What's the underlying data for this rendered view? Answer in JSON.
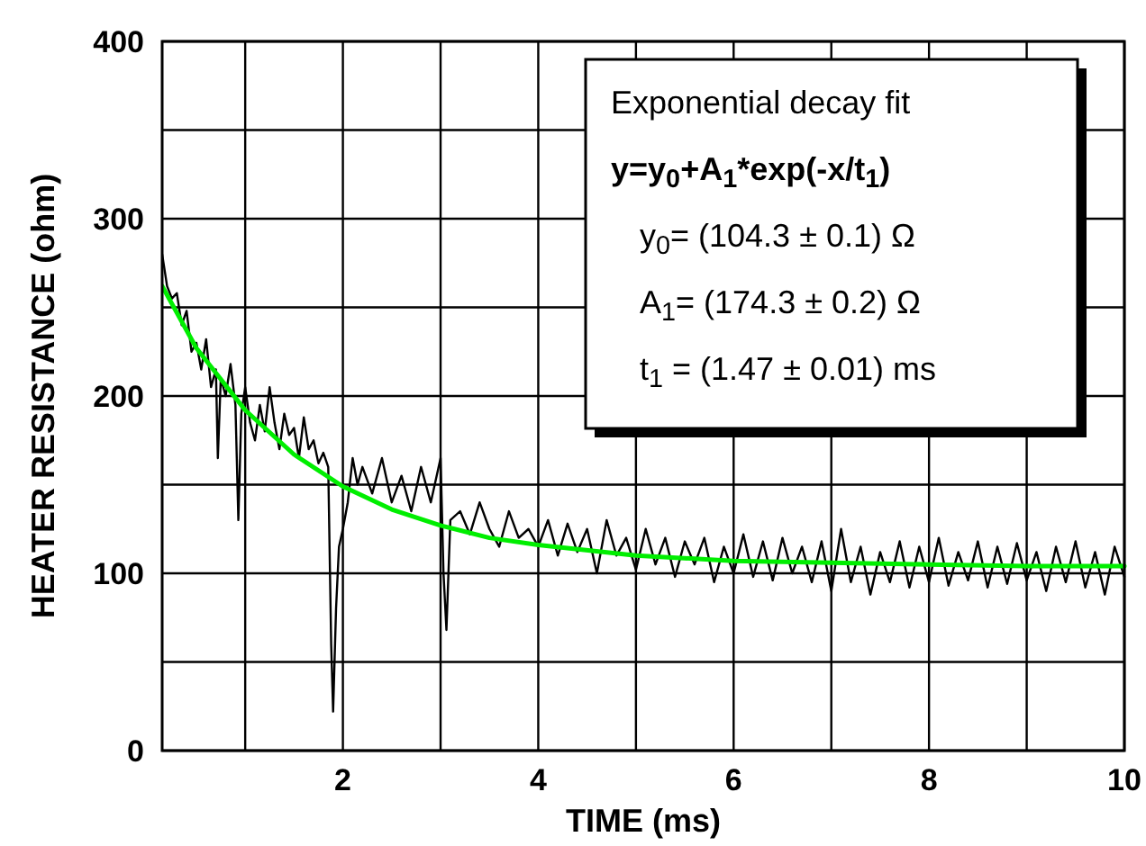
{
  "chart_data": {
    "type": "line",
    "xlabel": "TIME (ms)",
    "ylabel": "HEATER RESISTANCE (ohm)",
    "xlim": [
      0.15,
      10
    ],
    "ylim": [
      0,
      400
    ],
    "xticks": [
      {
        "value": 1,
        "label": null
      },
      2,
      {
        "value": 3,
        "label": null
      },
      4,
      {
        "value": 5,
        "label": null
      },
      6,
      {
        "value": 7,
        "label": null
      },
      8,
      {
        "value": 9,
        "label": null
      },
      10
    ],
    "yticks": [
      0,
      {
        "value": 50,
        "label": null
      },
      100,
      {
        "value": 150,
        "label": null
      },
      200,
      {
        "value": 250,
        "label": null
      },
      300,
      {
        "value": 350,
        "label": null
      },
      400
    ],
    "grid": true,
    "marker": "none",
    "line_style": "solid",
    "annotations": [
      "Exponential decay fit",
      "y=y$_{0}$+A$_{1}$*exp(-x/t$_{1}$)",
      "y$_{0}$= (104.3 ± 0.1) Ω",
      "A$_{1}$= (174.3 ± 0.2) Ω",
      "t$_{1}$ = (1.47 ± 0.01) ms"
    ],
    "series": [
      {
        "color": "#000000",
        "x": [
          0.15,
          0.2,
          0.25,
          0.3,
          0.35,
          0.4,
          0.45,
          0.5,
          0.55,
          0.6,
          0.65,
          0.7,
          0.72,
          0.75,
          0.8,
          0.85,
          0.9,
          0.93,
          0.96,
          1.0,
          1.05,
          1.1,
          1.15,
          1.2,
          1.25,
          1.3,
          1.35,
          1.4,
          1.45,
          1.5,
          1.55,
          1.6,
          1.65,
          1.7,
          1.75,
          1.8,
          1.85,
          1.88,
          1.9,
          1.93,
          1.96,
          2.0,
          2.05,
          2.1,
          2.15,
          2.2,
          2.3,
          2.4,
          2.5,
          2.6,
          2.7,
          2.8,
          2.9,
          3.0,
          3.03,
          3.06,
          3.1,
          3.2,
          3.3,
          3.4,
          3.5,
          3.6,
          3.7,
          3.8,
          3.9,
          4.0,
          4.1,
          4.2,
          4.3,
          4.4,
          4.5,
          4.6,
          4.7,
          4.8,
          4.9,
          5.0,
          5.1,
          5.2,
          5.3,
          5.4,
          5.5,
          5.6,
          5.7,
          5.8,
          5.9,
          6.0,
          6.1,
          6.2,
          6.3,
          6.4,
          6.5,
          6.6,
          6.7,
          6.8,
          6.9,
          7.0,
          7.1,
          7.2,
          7.3,
          7.4,
          7.5,
          7.6,
          7.7,
          7.8,
          7.9,
          8.0,
          8.1,
          8.2,
          8.3,
          8.4,
          8.5,
          8.6,
          8.7,
          8.8,
          8.9,
          9.0,
          9.1,
          9.2,
          9.3,
          9.4,
          9.5,
          9.6,
          9.7,
          9.8,
          9.9,
          10.0
        ],
        "values": [
          280,
          262,
          255,
          258,
          240,
          248,
          225,
          230,
          215,
          232,
          205,
          215,
          165,
          210,
          200,
          218,
          195,
          130,
          190,
          205,
          185,
          175,
          195,
          180,
          205,
          185,
          170,
          190,
          178,
          182,
          165,
          188,
          170,
          175,
          162,
          168,
          160,
          60,
          22,
          80,
          115,
          125,
          140,
          165,
          150,
          160,
          145,
          165,
          140,
          155,
          135,
          160,
          140,
          165,
          100,
          68,
          130,
          135,
          122,
          140,
          125,
          115,
          135,
          120,
          125,
          115,
          130,
          110,
          128,
          112,
          125,
          100,
          130,
          110,
          120,
          102,
          125,
          105,
          120,
          98,
          118,
          105,
          120,
          95,
          115,
          100,
          122,
          98,
          118,
          96,
          120,
          100,
          115,
          95,
          118,
          90,
          125,
          95,
          115,
          88,
          112,
          95,
          118,
          92,
          115,
          95,
          120,
          93,
          112,
          96,
          118,
          92,
          115,
          94,
          117,
          96,
          112,
          90,
          115,
          95,
          118,
          92,
          112,
          88,
          115,
          98
        ]
      },
      {
        "color": "#00ee00",
        "x": [
          0.15,
          0.5,
          1,
          1.5,
          2,
          2.5,
          3,
          3.5,
          4,
          5,
          6,
          7,
          8,
          9,
          10
        ],
        "values": [
          262,
          227,
          192,
          167,
          149,
          136,
          127,
          120,
          116,
          110,
          107,
          106,
          105,
          104,
          104
        ]
      }
    ]
  }
}
